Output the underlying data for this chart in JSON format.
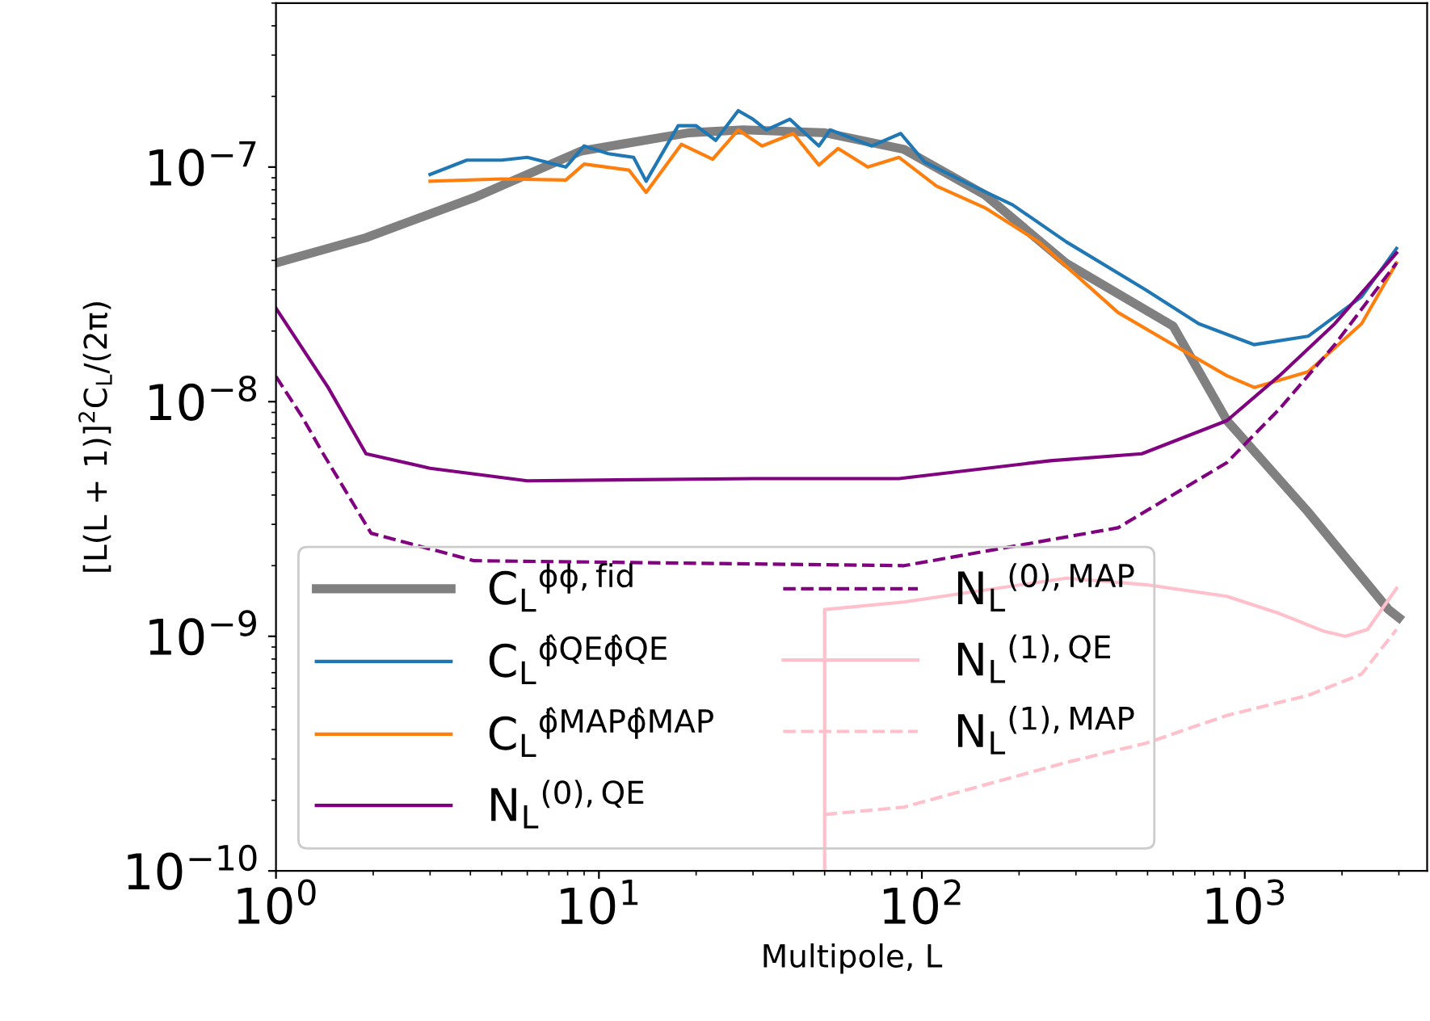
{
  "chart_data": {
    "type": "line",
    "xlabel": "Multipole, L",
    "ylabel": "[L(L + 1)]$^{2}$C$_{L}$/(2π)",
    "log": "xy",
    "xlim": [
      1,
      3670
    ],
    "ylim": [
      1e-10,
      5e-07
    ],
    "xticks": [
      {
        "value": 1,
        "label": "10$^{0}$"
      },
      {
        "value": 10,
        "label": "10$^{1}$"
      },
      {
        "value": 100,
        "label": "10$^{2}$"
      },
      {
        "value": 1000,
        "label": "10$^{3}$"
      }
    ],
    "yticks": [
      {
        "value": 1e-10,
        "label": "10$^{−10}$"
      },
      {
        "value": 1e-09,
        "label": "10$^{−9}$"
      },
      {
        "value": 1e-08,
        "label": "10$^{−8}$"
      },
      {
        "value": 1e-07,
        "label": "10$^{−7}$"
      }
    ],
    "grid": false,
    "legend": "bottom left",
    "marker": "none",
    "series": [
      {
        "name": "C$_{L}$$^{ϕϕ,fid}$",
        "color": "#808080",
        "line_style": "solid",
        "x": [
          1,
          1.9,
          4.1,
          8.8,
          19,
          28,
          50,
          88,
          157,
          279,
          600,
          881,
          1567,
          2786,
          3000
        ],
        "values": [
          3.9e-08,
          5e-08,
          7.4e-08,
          1.17e-07,
          1.4e-07,
          1.44e-07,
          1.4e-07,
          1.19e-07,
          7.6e-08,
          3.9e-08,
          2.1e-08,
          8.3e-09,
          3.4e-09,
          1.3e-09,
          1.2e-09
        ]
      },
      {
        "name": "C$_{L}$$^{ϕ̂QEϕ̂QE}$",
        "color": "#1f77b4",
        "line_style": "solid",
        "x": [
          3,
          3.9,
          5,
          6,
          7.9,
          9,
          10.7,
          12.8,
          14,
          17.6,
          20,
          23,
          27,
          30,
          33,
          39,
          48,
          52,
          70,
          86,
          102,
          139,
          191,
          280,
          493,
          720,
          1070,
          1570,
          2300,
          2950
        ],
        "values": [
          9.3e-08,
          1.07e-07,
          1.07e-07,
          1.1e-07,
          1e-07,
          1.23e-07,
          1.14e-07,
          1.1e-07,
          8.7e-08,
          1.5e-07,
          1.5e-07,
          1.3e-07,
          1.74e-07,
          1.6e-07,
          1.44e-07,
          1.6e-07,
          1.23e-07,
          1.44e-07,
          1.23e-07,
          1.39e-07,
          1.05e-07,
          8.5e-08,
          6.9e-08,
          4.8e-08,
          3e-08,
          2.15e-08,
          1.75e-08,
          1.9e-08,
          2.8e-08,
          4.5e-08
        ]
      },
      {
        "name": "C$_{L}$$^{ϕ̂MAPϕ̂MAP}$",
        "color": "#ff7f0e",
        "line_style": "solid",
        "x": [
          3,
          5,
          7.9,
          9,
          12.4,
          14,
          18,
          22.5,
          27,
          32,
          40,
          48,
          55,
          68,
          85,
          111,
          157,
          230,
          405,
          600,
          880,
          1070,
          1570,
          2300,
          2950
        ],
        "values": [
          8.7e-08,
          8.9e-08,
          8.8e-08,
          1.03e-07,
          9.7e-08,
          7.8e-08,
          1.25e-07,
          1.08e-07,
          1.44e-07,
          1.23e-07,
          1.39e-07,
          1.02e-07,
          1.2e-07,
          1e-07,
          1.1e-07,
          8.3e-08,
          6.7e-08,
          4.8e-08,
          2.4e-08,
          1.75e-08,
          1.29e-08,
          1.15e-08,
          1.34e-08,
          2.15e-08,
          3.9e-08
        ]
      },
      {
        "name": "N$_{L}$$^{(0),QE}$",
        "color": "#800080",
        "line_style": "solid",
        "x": [
          1,
          1.45,
          1.9,
          3,
          6,
          30,
          85,
          250,
          480,
          880,
          1280,
          1900,
          2950
        ],
        "values": [
          2.5e-08,
          1.15e-08,
          6e-09,
          5.2e-09,
          4.6e-09,
          4.7e-09,
          4.7e-09,
          5.6e-09,
          6e-09,
          8.3e-09,
          1.29e-08,
          2.15e-08,
          4.3e-08
        ]
      },
      {
        "name": "N$_{L}$$^{(0),MAP}$",
        "color": "#800080",
        "line_style": "dashed",
        "x": [
          1,
          1.2,
          1.4,
          1.97,
          4.1,
          88,
          405,
          880,
          1280,
          1900,
          2950
        ],
        "values": [
          1.28e-08,
          8.7e-09,
          6e-09,
          2.75e-09,
          2.1e-09,
          2e-09,
          2.9e-09,
          5.5e-09,
          9.3e-09,
          1.75e-08,
          3.9e-08
        ]
      },
      {
        "name": "N$_{L}$$^{(1),QE}$",
        "color": "#ffc0cb",
        "line_style": "solid",
        "x": [
          50,
          50,
          88,
          280,
          493,
          880,
          1280,
          1760,
          2050,
          2400,
          2950
        ],
        "values": [
          1e-10,
          1.3e-09,
          1.4e-09,
          1.77e-09,
          1.66e-09,
          1.48e-09,
          1.25e-09,
          1.05e-09,
          1e-09,
          1.07e-09,
          1.6e-09
        ]
      },
      {
        "name": "N$_{L}$$^{(1),MAP}$",
        "color": "#ffc0cb",
        "line_style": "dashed",
        "x": [
          50,
          88,
          280,
          493,
          880,
          1570,
          2300,
          2950
        ],
        "values": [
          1.74e-10,
          1.87e-10,
          2.9e-10,
          3.5e-10,
          4.6e-10,
          5.6e-10,
          6.9e-10,
          1.07e-09
        ]
      }
    ]
  }
}
